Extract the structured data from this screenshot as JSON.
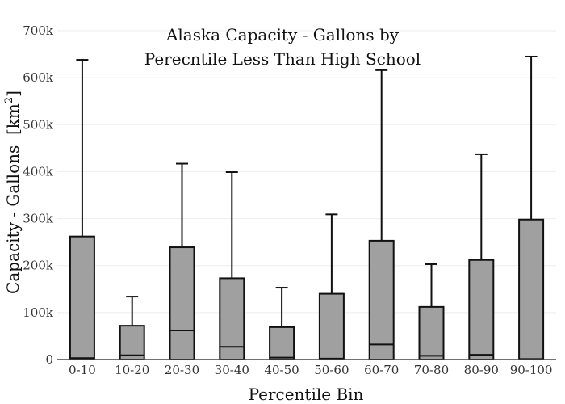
{
  "chart_data": {
    "type": "box",
    "title_lines": [
      "Alaska Capacity - Gallons by",
      "Perecntile Less Than High School"
    ],
    "xlabel": "Percentile Bin",
    "ylabel": "Capacity - Gallons",
    "ylabel_unit": "[km",
    "ylabel_unit_sup": "2",
    "ylabel_unit_close": "]",
    "ylim": [
      0,
      700000
    ],
    "yticks": [
      0,
      100000,
      200000,
      300000,
      400000,
      500000,
      600000,
      700000
    ],
    "ytick_labels": [
      "0",
      "100k",
      "200k",
      "300k",
      "400k",
      "500k",
      "600k",
      "700k"
    ],
    "grid": true,
    "categories": [
      "0-10",
      "10-20",
      "20-30",
      "30-40",
      "40-50",
      "50-60",
      "60-70",
      "70-80",
      "80-90",
      "90-100"
    ],
    "boxes": [
      {
        "min": 0,
        "q1": 0,
        "median": 3000,
        "q3": 262000,
        "max": 638000
      },
      {
        "min": 0,
        "q1": 0,
        "median": 9000,
        "q3": 72000,
        "max": 134000
      },
      {
        "min": 0,
        "q1": 0,
        "median": 62000,
        "q3": 239000,
        "max": 417000
      },
      {
        "min": 0,
        "q1": 0,
        "median": 27000,
        "q3": 173000,
        "max": 399000
      },
      {
        "min": 0,
        "q1": 0,
        "median": 4000,
        "q3": 69000,
        "max": 153000
      },
      {
        "min": 0,
        "q1": 0,
        "median": 2000,
        "q3": 140000,
        "max": 309000
      },
      {
        "min": 0,
        "q1": 0,
        "median": 32000,
        "q3": 253000,
        "max": 616000
      },
      {
        "min": 0,
        "q1": 0,
        "median": 8000,
        "q3": 112000,
        "max": 203000
      },
      {
        "min": 0,
        "q1": 0,
        "median": 10000,
        "q3": 212000,
        "max": 437000
      },
      {
        "min": 0,
        "q1": 0,
        "median": 1000,
        "q3": 298000,
        "max": 645000
      }
    ],
    "colors": {
      "box_fill": "#a0a0a0",
      "box_stroke": "#111111",
      "grid": "#eeeeee",
      "axis": "#444444"
    }
  }
}
